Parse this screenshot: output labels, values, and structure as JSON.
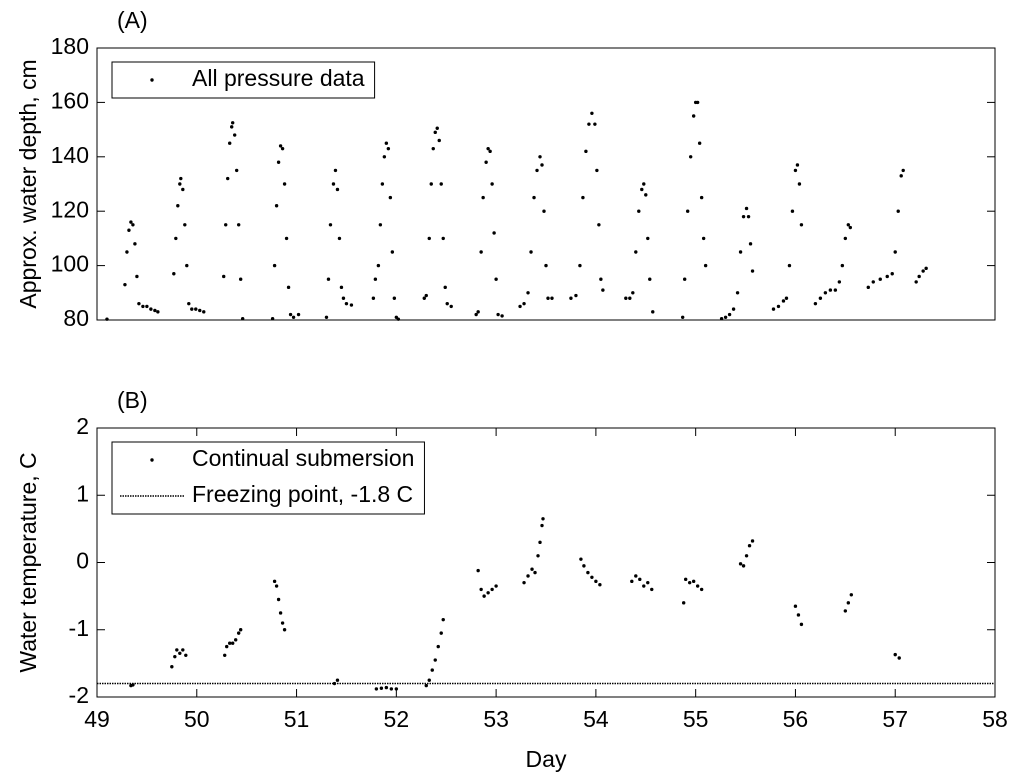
{
  "chart_data": [
    {
      "type": "scatter",
      "panel_label": "(A)",
      "ylabel": "Approx. water depth, cm",
      "xlim": [
        49,
        58
      ],
      "ylim": [
        80,
        180
      ],
      "yticks": [
        80,
        100,
        120,
        140,
        160,
        180
      ],
      "legend": "upper left",
      "series": [
        {
          "name": "All pressure data",
          "color": "#000000",
          "x": [
            49.1,
            49.28,
            49.3,
            49.32,
            49.34,
            49.36,
            49.38,
            49.4,
            49.42,
            49.46,
            49.5,
            49.54,
            49.58,
            49.61,
            49.77,
            49.79,
            49.81,
            49.83,
            49.84,
            49.86,
            49.88,
            49.9,
            49.92,
            49.95,
            49.99,
            50.03,
            50.07,
            50.27,
            50.29,
            50.31,
            50.33,
            50.35,
            50.36,
            50.38,
            50.4,
            50.42,
            50.44,
            50.46,
            50.76,
            50.78,
            50.8,
            50.82,
            50.84,
            50.86,
            50.88,
            50.9,
            50.92,
            50.94,
            50.97,
            51.02,
            51.3,
            51.32,
            51.34,
            51.37,
            51.39,
            51.41,
            51.43,
            51.45,
            51.47,
            51.5,
            51.55,
            51.77,
            51.79,
            51.82,
            51.84,
            51.86,
            51.88,
            51.9,
            51.92,
            51.94,
            51.96,
            51.98,
            52.0,
            52.02,
            52.28,
            52.3,
            52.33,
            52.35,
            52.37,
            52.39,
            52.41,
            52.43,
            52.45,
            52.47,
            52.49,
            52.51,
            52.55,
            52.8,
            52.82,
            52.85,
            52.87,
            52.9,
            52.92,
            52.94,
            52.96,
            52.98,
            53.0,
            53.02,
            53.06,
            53.24,
            53.28,
            53.32,
            53.35,
            53.38,
            53.41,
            53.44,
            53.46,
            53.48,
            53.5,
            53.52,
            53.56,
            53.75,
            53.8,
            53.84,
            53.87,
            53.9,
            53.93,
            53.96,
            53.99,
            54.01,
            54.03,
            54.05,
            54.07,
            54.3,
            54.34,
            54.37,
            54.4,
            54.43,
            54.46,
            54.48,
            54.5,
            54.52,
            54.54,
            54.57,
            54.87,
            54.89,
            54.92,
            54.95,
            54.98,
            55.0,
            55.02,
            55.04,
            55.06,
            55.08,
            55.1,
            55.26,
            55.3,
            55.34,
            55.38,
            55.42,
            55.45,
            55.48,
            55.51,
            55.53,
            55.55,
            55.57,
            55.78,
            55.83,
            55.88,
            55.91,
            55.94,
            55.97,
            56.0,
            56.02,
            56.04,
            56.06,
            56.2,
            56.25,
            56.3,
            56.35,
            56.4,
            56.44,
            56.47,
            56.5,
            56.53,
            56.55,
            56.73,
            56.78,
            56.85,
            56.92,
            56.97,
            57.0,
            57.03,
            57.06,
            57.08,
            57.21,
            57.24,
            57.28,
            57.31
          ],
          "values": [
            80.3,
            93,
            105,
            113,
            116,
            115,
            108,
            96,
            86,
            85,
            85,
            84,
            83.5,
            83,
            97,
            110,
            122,
            130,
            132,
            128,
            115,
            100,
            86,
            84,
            84,
            83.5,
            83,
            96,
            115,
            132,
            145,
            151,
            152.5,
            148,
            135,
            115,
            95,
            80.5,
            80.5,
            100,
            122,
            138,
            144,
            143,
            130,
            110,
            92,
            82,
            81,
            82,
            81,
            95,
            115,
            130,
            135,
            128,
            110,
            92,
            88,
            86,
            85.5,
            88,
            95,
            100,
            115,
            130,
            140,
            145,
            143,
            125,
            105,
            88,
            81,
            80.3,
            88,
            89,
            110,
            130,
            143,
            149,
            150.5,
            146,
            130,
            110,
            92,
            86,
            85,
            82,
            83,
            105,
            125,
            138,
            143,
            142,
            130,
            112,
            95,
            82,
            81.5,
            85,
            86,
            90,
            105,
            125,
            135,
            140,
            137,
            120,
            100,
            88,
            88,
            88,
            89,
            100,
            125,
            142,
            152,
            156,
            152,
            135,
            115,
            95,
            91,
            88,
            88,
            90,
            105,
            120,
            128,
            130,
            126,
            110,
            95,
            83,
            81,
            95,
            120,
            140,
            155,
            160,
            160,
            145,
            125,
            110,
            100,
            80.5,
            81,
            82,
            84,
            90,
            105,
            118,
            121,
            118,
            108,
            98,
            84,
            85,
            87,
            88,
            100,
            120,
            135,
            137,
            130,
            115,
            86,
            88,
            90,
            91,
            91,
            94,
            100,
            110,
            115,
            114,
            92,
            94,
            95,
            96,
            97,
            105,
            120,
            133,
            135,
            94,
            96,
            98,
            99
          ]
        }
      ]
    },
    {
      "type": "scatter",
      "panel_label": "(B)",
      "ylabel": "Water temperature, C",
      "xlabel": "Day",
      "xlim": [
        49,
        58
      ],
      "xticks": [
        49,
        50,
        51,
        52,
        53,
        54,
        55,
        56,
        57,
        58
      ],
      "ylim": [
        -2,
        2
      ],
      "yticks": [
        -2,
        -1,
        0,
        1,
        2
      ],
      "legend": "upper left",
      "series": [
        {
          "name": "Continual submersion",
          "color": "#000000",
          "x": [
            49.34,
            49.36,
            49.75,
            49.78,
            49.8,
            49.83,
            49.86,
            49.89,
            50.28,
            50.3,
            50.33,
            50.36,
            50.39,
            50.42,
            50.44,
            50.78,
            50.8,
            50.82,
            50.84,
            50.86,
            50.88,
            51.38,
            51.41,
            51.8,
            51.85,
            51.9,
            51.95,
            52.0,
            52.3,
            52.33,
            52.36,
            52.39,
            52.42,
            52.45,
            52.47,
            52.82,
            52.85,
            52.88,
            52.92,
            52.96,
            53.0,
            53.28,
            53.32,
            53.36,
            53.39,
            53.42,
            53.44,
            53.46,
            53.47,
            53.85,
            53.88,
            53.92,
            53.96,
            54.0,
            54.04,
            54.36,
            54.4,
            54.44,
            54.48,
            54.52,
            54.56,
            54.88,
            54.9,
            54.94,
            54.98,
            55.02,
            55.06,
            55.45,
            55.48,
            55.51,
            55.54,
            55.57,
            56.0,
            56.03,
            56.06,
            56.5,
            56.53,
            56.56,
            57.0,
            57.04
          ],
          "values": [
            -1.83,
            -1.82,
            -1.55,
            -1.4,
            -1.3,
            -1.35,
            -1.3,
            -1.38,
            -1.38,
            -1.25,
            -1.2,
            -1.2,
            -1.15,
            -1.05,
            -1.0,
            -0.28,
            -0.35,
            -0.55,
            -0.75,
            -0.9,
            -1.0,
            -1.8,
            -1.75,
            -1.88,
            -1.87,
            -1.86,
            -1.88,
            -1.88,
            -1.83,
            -1.75,
            -1.6,
            -1.45,
            -1.25,
            -1.05,
            -0.85,
            -0.12,
            -0.4,
            -0.5,
            -0.45,
            -0.4,
            -0.35,
            -0.3,
            -0.2,
            -0.1,
            -0.15,
            0.1,
            0.3,
            0.55,
            0.65,
            0.05,
            -0.05,
            -0.15,
            -0.22,
            -0.28,
            -0.33,
            -0.28,
            -0.2,
            -0.25,
            -0.35,
            -0.3,
            -0.4,
            -0.6,
            -0.25,
            -0.3,
            -0.28,
            -0.35,
            -0.4,
            -0.02,
            -0.05,
            0.1,
            0.25,
            0.32,
            -0.65,
            -0.78,
            -0.92,
            -0.72,
            -0.6,
            -0.48,
            -1.37,
            -1.42
          ]
        },
        {
          "name": "Freezing point, -1.8 C",
          "color": "#000000",
          "style": "dotted",
          "x": [
            49,
            58
          ],
          "values": [
            -1.8,
            -1.8
          ]
        }
      ]
    }
  ]
}
